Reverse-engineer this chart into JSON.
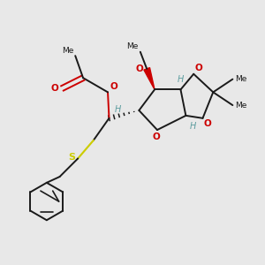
{
  "background_color": "#e8e8e8",
  "bond_color": "#1a1a1a",
  "oxygen_color": "#cc0000",
  "sulfur_color": "#cccc00",
  "stereo_label_color": "#5f9ea0",
  "figsize": [
    3.0,
    3.0
  ],
  "dpi": 100,
  "xlim": [
    0,
    10
  ],
  "ylim": [
    0,
    10
  ]
}
